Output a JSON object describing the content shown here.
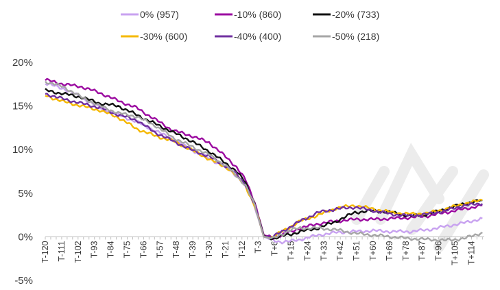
{
  "chart_data": {
    "type": "line",
    "title": "",
    "xlabel": "",
    "ylabel": "",
    "ylim": [
      -5,
      20
    ],
    "yticks": [
      -5,
      0,
      5,
      10,
      15,
      20
    ],
    "ytick_labels": [
      "-5%",
      "0%",
      "5%",
      "10%",
      "15%",
      "20%"
    ],
    "xlim": [
      -120,
      121
    ],
    "xticks": [
      -120,
      -111,
      -102,
      -93,
      -84,
      -75,
      -66,
      -57,
      -48,
      -39,
      -30,
      -21,
      -12,
      -3,
      6,
      15,
      24,
      33,
      42,
      51,
      60,
      69,
      78,
      87,
      96,
      105,
      114
    ],
    "xtick_labels": [
      "T-120",
      "T-111",
      "T-102",
      "T-93",
      "T-84",
      "T-75",
      "T-66",
      "T-57",
      "T-48",
      "T-39",
      "T-30",
      "T-21",
      "T-12",
      "T-3",
      "T+6",
      "T+15",
      "T+24",
      "T+33",
      "T+42",
      "T+51",
      "T+60",
      "T+69",
      "T+78",
      "T+87",
      "T+96",
      "T+105",
      "T+114"
    ],
    "grid": false,
    "legend_position": "top",
    "series": [
      {
        "name": "0% (957)",
        "color": "#c8a2f0",
        "x": [
          -120,
          -110,
          -100,
          -90,
          -80,
          -70,
          -60,
          -50,
          -40,
          -30,
          -20,
          -15,
          -10,
          -5,
          0,
          5,
          10,
          15,
          20,
          30,
          40,
          50,
          60,
          70,
          80,
          90,
          100,
          110,
          120
        ],
        "y": [
          17.6,
          17.0,
          16.0,
          14.8,
          14.0,
          13.2,
          12.2,
          11.2,
          10.0,
          9.0,
          7.8,
          7.0,
          5.8,
          3.5,
          0.0,
          -0.4,
          -0.6,
          -0.5,
          -0.3,
          0.2,
          0.5,
          0.6,
          0.7,
          0.6,
          0.6,
          0.8,
          1.2,
          1.6,
          2.1
        ]
      },
      {
        "name": "-10% (860)",
        "color": "#9b0aa0",
        "x": [
          -120,
          -110,
          -100,
          -90,
          -80,
          -70,
          -60,
          -50,
          -40,
          -30,
          -20,
          -15,
          -10,
          -5,
          0,
          5,
          10,
          15,
          20,
          30,
          40,
          50,
          60,
          70,
          80,
          90,
          100,
          110,
          120
        ],
        "y": [
          18.0,
          17.5,
          17.2,
          16.5,
          15.6,
          14.8,
          13.5,
          12.2,
          11.6,
          10.8,
          9.0,
          8.0,
          6.5,
          4.0,
          0.2,
          -0.1,
          0.2,
          0.6,
          1.0,
          1.5,
          1.8,
          2.0,
          2.0,
          2.1,
          2.2,
          2.4,
          2.8,
          3.2,
          3.6
        ]
      },
      {
        "name": "-20% (733)",
        "color": "#111111",
        "x": [
          -120,
          -110,
          -100,
          -90,
          -80,
          -70,
          -60,
          -50,
          -40,
          -30,
          -20,
          -15,
          -10,
          -5,
          0,
          5,
          10,
          15,
          20,
          30,
          40,
          50,
          60,
          70,
          80,
          90,
          100,
          110,
          120
        ],
        "y": [
          16.8,
          16.4,
          16.0,
          15.3,
          15.0,
          14.0,
          13.0,
          12.0,
          11.0,
          9.8,
          8.3,
          7.5,
          6.2,
          3.8,
          0.1,
          -0.2,
          0.1,
          0.3,
          0.6,
          1.0,
          1.8,
          2.8,
          3.0,
          2.8,
          2.4,
          2.6,
          3.2,
          3.8,
          4.2
        ]
      },
      {
        "name": "-30% (600)",
        "color": "#f5b800",
        "x": [
          -120,
          -110,
          -100,
          -90,
          -80,
          -70,
          -60,
          -50,
          -40,
          -30,
          -20,
          -15,
          -10,
          -5,
          0,
          5,
          10,
          15,
          20,
          30,
          40,
          50,
          60,
          70,
          80,
          90,
          100,
          110,
          120
        ],
        "y": [
          16.2,
          15.5,
          15.0,
          14.5,
          13.7,
          12.4,
          11.6,
          11.0,
          10.0,
          8.9,
          7.9,
          7.0,
          5.8,
          3.5,
          0.0,
          0.0,
          0.6,
          1.2,
          1.8,
          2.5,
          3.3,
          3.6,
          3.2,
          2.8,
          2.6,
          2.7,
          3.2,
          3.8,
          4.2
        ]
      },
      {
        "name": "-40% (400)",
        "color": "#7030a0",
        "x": [
          -120,
          -110,
          -100,
          -90,
          -80,
          -70,
          -60,
          -50,
          -40,
          -30,
          -20,
          -15,
          -10,
          -5,
          0,
          5,
          10,
          15,
          20,
          30,
          40,
          50,
          60,
          70,
          80,
          90,
          100,
          110,
          120
        ],
        "y": [
          16.4,
          15.8,
          15.3,
          14.8,
          14.0,
          13.4,
          12.0,
          11.0,
          10.0,
          9.2,
          8.0,
          7.2,
          6.0,
          3.6,
          0.0,
          0.0,
          0.6,
          1.2,
          1.8,
          2.8,
          3.2,
          3.4,
          3.0,
          2.6,
          2.4,
          2.6,
          3.0,
          3.6,
          3.8
        ]
      },
      {
        "name": "-50% (218)",
        "color": "#a6a6a6",
        "x": [
          -120,
          -110,
          -100,
          -90,
          -80,
          -70,
          -60,
          -50,
          -40,
          -30,
          -20,
          -15,
          -10,
          -5,
          0,
          5,
          10,
          15,
          20,
          30,
          40,
          50,
          60,
          70,
          80,
          90,
          100,
          110,
          120
        ],
        "y": [
          17.8,
          17.2,
          16.0,
          15.0,
          14.2,
          13.8,
          12.8,
          11.4,
          10.4,
          9.4,
          8.0,
          7.0,
          5.9,
          3.6,
          0.0,
          -0.2,
          0.3,
          0.8,
          1.0,
          1.0,
          0.8,
          0.4,
          0.2,
          0.0,
          -0.2,
          -0.3,
          -0.4,
          -0.2,
          0.5
        ]
      }
    ]
  }
}
